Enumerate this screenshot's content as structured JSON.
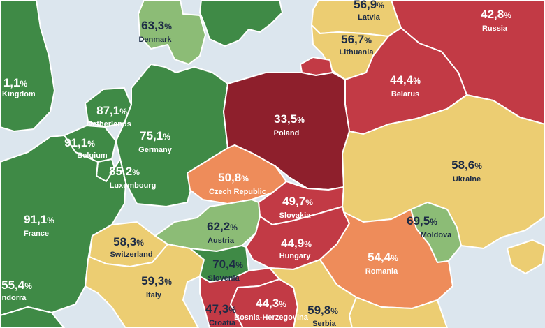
{
  "colors": {
    "sea": "#dce6ee",
    "green": "#3f8a46",
    "light_green": "#8cbc76",
    "yellow": "#eccd72",
    "orange": "#ee8c5a",
    "red": "#c23a45",
    "dark_red": "#8e1f2c"
  },
  "countries": [
    {
      "id": "united-kingdom",
      "name": "d Kingdom",
      "value": "1,1%",
      "color": "green"
    },
    {
      "id": "denmark",
      "name": "Denmark",
      "value": "63,3%",
      "color": "light_green"
    },
    {
      "id": "latvia",
      "name": "Latvia",
      "value": "56,9%",
      "color": "yellow"
    },
    {
      "id": "russia",
      "name": "Russia",
      "value": "42,8%",
      "color": "red"
    },
    {
      "id": "lithuania",
      "name": "Lithuania",
      "value": "56,7%",
      "color": "yellow"
    },
    {
      "id": "netherlands",
      "name": "Netherlands",
      "value": "87,1%",
      "color": "green"
    },
    {
      "id": "belarus",
      "name": "Belarus",
      "value": "44,4%",
      "color": "red"
    },
    {
      "id": "poland",
      "name": "Poland",
      "value": "33,5%",
      "color": "dark_red"
    },
    {
      "id": "germany",
      "name": "Germany",
      "value": "75,1%",
      "color": "green"
    },
    {
      "id": "belgium",
      "name": "Belgium",
      "value": "91,1%",
      "color": "green"
    },
    {
      "id": "luxembourg",
      "name": "Luxembourg",
      "value": "85,2%",
      "color": "green"
    },
    {
      "id": "ukraine",
      "name": "Ukraine",
      "value": "58,6%",
      "color": "yellow"
    },
    {
      "id": "czech-republic",
      "name": "Czech Republic",
      "value": "50,8%",
      "color": "orange"
    },
    {
      "id": "slovakia",
      "name": "Slovakia",
      "value": "49,7%",
      "color": "red"
    },
    {
      "id": "france",
      "name": "France",
      "value": "91,1%",
      "color": "green"
    },
    {
      "id": "austria",
      "name": "Austria",
      "value": "62,2%",
      "color": "light_green"
    },
    {
      "id": "moldova",
      "name": "Moldova",
      "value": "69,5%",
      "color": "light_green"
    },
    {
      "id": "switzerland",
      "name": "Switzerland",
      "value": "58,3%",
      "color": "yellow"
    },
    {
      "id": "hungary",
      "name": "Hungary",
      "value": "44,9%",
      "color": "red"
    },
    {
      "id": "romania",
      "name": "Romania",
      "value": "54,4%",
      "color": "orange"
    },
    {
      "id": "slovenia",
      "name": "Slovenia",
      "value": "70,4%",
      "color": "green"
    },
    {
      "id": "italy",
      "name": "Italy",
      "value": "59,3%",
      "color": "yellow"
    },
    {
      "id": "andorra",
      "name": "ndorra",
      "value": "55,4%",
      "color": "green"
    },
    {
      "id": "croatia",
      "name": "Croatia",
      "value": "47,3%",
      "color": "red"
    },
    {
      "id": "bosnia-herzegovina",
      "name": "Bosnia-Herzegovina",
      "value": "44,3%",
      "color": "red"
    },
    {
      "id": "serbia",
      "name": "Serbia",
      "value": "59,8%",
      "color": "yellow"
    }
  ]
}
